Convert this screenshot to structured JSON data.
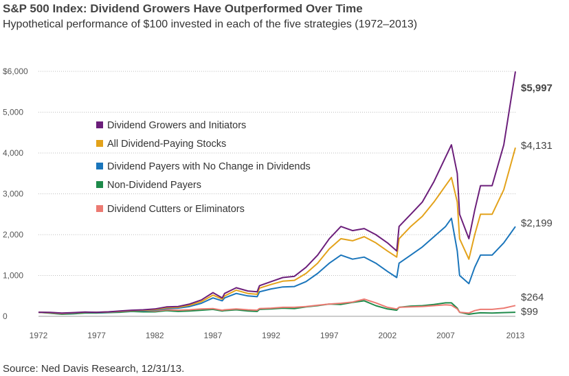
{
  "header": {
    "title": "S&P 500 Index: Dividend Growers Have Outperformed Over Time",
    "subtitle": "Hypothetical performance of $100 invested in each of the five strategies (1972–2013)"
  },
  "footer": {
    "source": "Source: Ned Davis Research, 12/31/13."
  },
  "chart_data": {
    "type": "line",
    "ylim": [
      0,
      6000
    ],
    "xlim": [
      1972,
      2013
    ],
    "y_ticks": [
      0,
      1000,
      2000,
      3000,
      4000,
      5000,
      6000
    ],
    "y_tick_labels": [
      "0",
      "1,000",
      "2,000",
      "3,000",
      "4,000",
      "5,000",
      "$6,000"
    ],
    "x_ticks": [
      1972,
      1977,
      1982,
      1987,
      1992,
      1997,
      2002,
      2007,
      2013
    ],
    "x_tick_labels": [
      "1972",
      "1977",
      "1982",
      "1987",
      "1992",
      "1997",
      "2002",
      "2007",
      "2013"
    ],
    "grid": "horizontal dotted",
    "legend_position": "upper-left",
    "series": [
      {
        "name": "Dividend Growers and Initiators",
        "color": "#6b1e7a",
        "end_label": "$5,997",
        "end_label_bold": true,
        "x": [
          1972,
          1973,
          1974,
          1975,
          1976,
          1977,
          1978,
          1979,
          1980,
          1981,
          1982,
          1983,
          1984,
          1985,
          1986,
          1987,
          1987.8,
          1988,
          1989,
          1990,
          1990.8,
          1991,
          1992,
          1993,
          1994,
          1995,
          1996,
          1997,
          1998,
          1999,
          2000,
          2001,
          2002,
          2002.8,
          2003,
          2004,
          2005,
          2006,
          2007,
          2007.5,
          2008,
          2008.2,
          2009,
          2009.5,
          2010,
          2011,
          2012,
          2013
        ],
        "values": [
          100,
          95,
          80,
          90,
          105,
          100,
          110,
          130,
          150,
          160,
          180,
          230,
          240,
          300,
          400,
          580,
          450,
          560,
          700,
          620,
          600,
          750,
          850,
          950,
          980,
          1200,
          1500,
          1900,
          2200,
          2100,
          2150,
          2000,
          1800,
          1600,
          2200,
          2500,
          2800,
          3300,
          3900,
          4200,
          3500,
          2500,
          1900,
          2600,
          3200,
          3200,
          4200,
          5997
        ]
      },
      {
        "name": "All Dividend-Paying Stocks",
        "color": "#e3a21a",
        "end_label": "$4,131",
        "end_label_bold": false,
        "x": [
          1972,
          1973,
          1974,
          1975,
          1976,
          1977,
          1978,
          1979,
          1980,
          1981,
          1982,
          1983,
          1984,
          1985,
          1986,
          1987,
          1987.8,
          1988,
          1989,
          1990,
          1990.8,
          1991,
          1992,
          1993,
          1994,
          1995,
          1996,
          1997,
          1998,
          1999,
          2000,
          2001,
          2002,
          2002.8,
          2003,
          2004,
          2005,
          2006,
          2007,
          2007.5,
          2008,
          2008.2,
          2009,
          2009.5,
          2010,
          2011,
          2012,
          2013
        ],
        "values": [
          100,
          92,
          75,
          85,
          100,
          95,
          105,
          120,
          140,
          150,
          165,
          210,
          220,
          270,
          360,
          520,
          420,
          500,
          640,
          560,
          540,
          690,
          780,
          860,
          880,
          1050,
          1300,
          1650,
          1900,
          1850,
          1950,
          1800,
          1600,
          1450,
          1900,
          2200,
          2450,
          2800,
          3200,
          3400,
          2800,
          1900,
          1400,
          2000,
          2500,
          2500,
          3100,
          4131
        ]
      },
      {
        "name": "Dividend Payers with No Change in Dividends",
        "color": "#1a75bb",
        "end_label": "$2,199",
        "end_label_bold": false,
        "x": [
          1972,
          1973,
          1974,
          1975,
          1976,
          1977,
          1978,
          1979,
          1980,
          1981,
          1982,
          1983,
          1984,
          1985,
          1986,
          1987,
          1987.8,
          1988,
          1989,
          1990,
          1990.8,
          1991,
          1992,
          1993,
          1994,
          1995,
          1996,
          1997,
          1998,
          1999,
          2000,
          2001,
          2002,
          2002.8,
          2003,
          2004,
          2005,
          2006,
          2007,
          2007.5,
          2008,
          2008.2,
          2009,
          2009.5,
          2010,
          2011,
          2012,
          2013
        ],
        "values": [
          100,
          90,
          70,
          80,
          95,
          90,
          100,
          115,
          130,
          140,
          150,
          190,
          200,
          240,
          320,
          450,
          380,
          450,
          560,
          500,
          480,
          600,
          670,
          720,
          730,
          850,
          1050,
          1300,
          1500,
          1400,
          1450,
          1300,
          1100,
          950,
          1300,
          1500,
          1700,
          1950,
          2200,
          2400,
          1600,
          1000,
          800,
          1200,
          1500,
          1500,
          1800,
          2199
        ]
      },
      {
        "name": "Non-Dividend Payers",
        "color": "#1e8a4a",
        "end_label": "$99",
        "end_label_bold": false,
        "x": [
          1972,
          1973,
          1974,
          1975,
          1976,
          1977,
          1978,
          1979,
          1980,
          1981,
          1982,
          1983,
          1984,
          1985,
          1986,
          1987,
          1987.8,
          1988,
          1989,
          1990,
          1990.8,
          1991,
          1992,
          1993,
          1994,
          1995,
          1996,
          1997,
          1998,
          1999,
          2000,
          2001,
          2002,
          2002.8,
          2003,
          2004,
          2005,
          2006,
          2007,
          2007.5,
          2008,
          2008.2,
          2009,
          2009.5,
          2010,
          2011,
          2012,
          2013
        ],
        "values": [
          100,
          75,
          50,
          60,
          80,
          80,
          90,
          100,
          120,
          110,
          110,
          140,
          120,
          130,
          150,
          170,
          130,
          140,
          160,
          130,
          120,
          170,
          180,
          200,
          190,
          230,
          260,
          300,
          290,
          340,
          380,
          260,
          180,
          150,
          220,
          250,
          260,
          290,
          330,
          330,
          200,
          100,
          50,
          70,
          85,
          80,
          90,
          99
        ]
      },
      {
        "name": "Dividend Cutters or Eliminators",
        "color": "#ec7a72",
        "end_label": "$264",
        "end_label_bold": false,
        "x": [
          1972,
          1973,
          1974,
          1975,
          1976,
          1977,
          1978,
          1979,
          1980,
          1981,
          1982,
          1983,
          1984,
          1985,
          1986,
          1987,
          1987.8,
          1988,
          1989,
          1990,
          1990.8,
          1991,
          1992,
          1993,
          1994,
          1995,
          1996,
          1997,
          1998,
          1999,
          2000,
          2001,
          2002,
          2002.8,
          2003,
          2004,
          2005,
          2006,
          2007,
          2007.5,
          2008,
          2008.2,
          2009,
          2009.5,
          2010,
          2011,
          2012,
          2013
        ],
        "values": [
          100,
          85,
          65,
          80,
          100,
          100,
          110,
          120,
          140,
          140,
          130,
          160,
          150,
          160,
          180,
          190,
          150,
          160,
          180,
          160,
          150,
          190,
          200,
          220,
          220,
          240,
          270,
          300,
          320,
          350,
          420,
          330,
          220,
          180,
          220,
          230,
          240,
          260,
          280,
          270,
          180,
          100,
          80,
          140,
          170,
          170,
          200,
          264
        ]
      }
    ]
  }
}
